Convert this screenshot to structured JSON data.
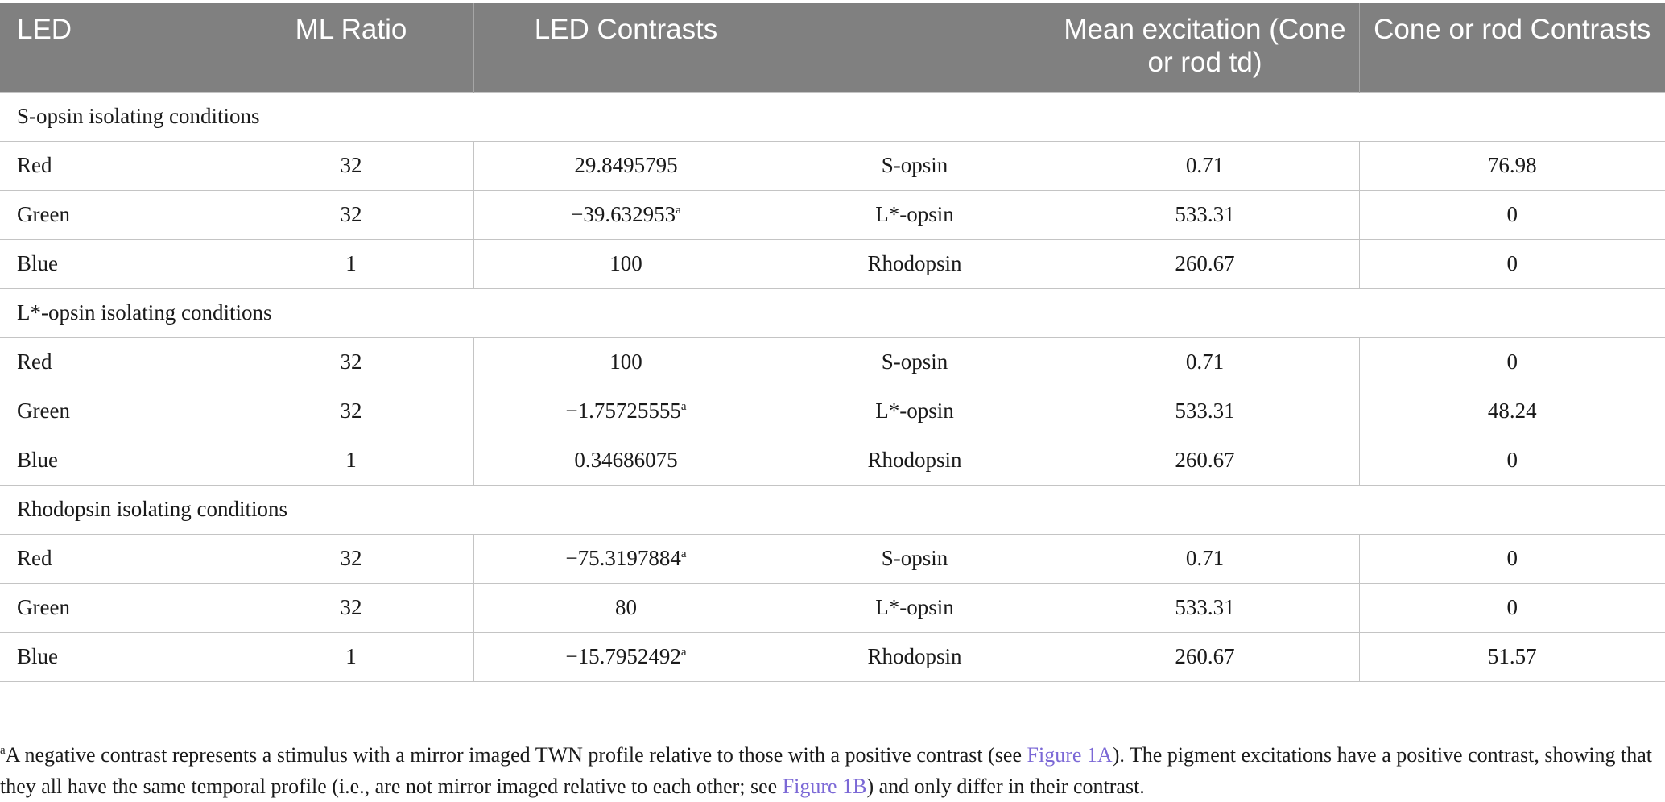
{
  "table": {
    "headers": [
      "LED",
      "ML Ratio",
      "LED Contrasts",
      "",
      "Mean excitation (Cone or rod td)",
      "Cone or rod Contrasts"
    ],
    "sections": [
      {
        "title": "S-opsin isolating conditions",
        "rows": [
          {
            "led": "Red",
            "ml_ratio": "32",
            "led_contrast": "29.8495795",
            "note": "",
            "pigment": "S-opsin",
            "mean_excitation": "0.71",
            "contrast": "76.98"
          },
          {
            "led": "Green",
            "ml_ratio": "32",
            "led_contrast": "−39.632953",
            "note": "a",
            "pigment": "L*-opsin",
            "mean_excitation": "533.31",
            "contrast": "0"
          },
          {
            "led": "Blue",
            "ml_ratio": "1",
            "led_contrast": "100",
            "note": "",
            "pigment": "Rhodopsin",
            "mean_excitation": "260.67",
            "contrast": "0"
          }
        ]
      },
      {
        "title": "L*-opsin isolating conditions",
        "rows": [
          {
            "led": "Red",
            "ml_ratio": "32",
            "led_contrast": "100",
            "note": "",
            "pigment": "S-opsin",
            "mean_excitation": "0.71",
            "contrast": "0"
          },
          {
            "led": "Green",
            "ml_ratio": "32",
            "led_contrast": "−1.75725555",
            "note": "a",
            "pigment": "L*-opsin",
            "mean_excitation": "533.31",
            "contrast": "48.24"
          },
          {
            "led": "Blue",
            "ml_ratio": "1",
            "led_contrast": "0.34686075",
            "note": "",
            "pigment": "Rhodopsin",
            "mean_excitation": "260.67",
            "contrast": "0"
          }
        ]
      },
      {
        "title": "Rhodopsin isolating conditions",
        "rows": [
          {
            "led": "Red",
            "ml_ratio": "32",
            "led_contrast": "−75.3197884",
            "note": "a",
            "pigment": "S-opsin",
            "mean_excitation": "0.71",
            "contrast": "0"
          },
          {
            "led": "Green",
            "ml_ratio": "32",
            "led_contrast": "80",
            "note": "",
            "pigment": "L*-opsin",
            "mean_excitation": "533.31",
            "contrast": "0"
          },
          {
            "led": "Blue",
            "ml_ratio": "1",
            "led_contrast": "−15.7952492",
            "note": "a",
            "pigment": "Rhodopsin",
            "mean_excitation": "260.67",
            "contrast": "51.57"
          }
        ]
      }
    ]
  },
  "footnote": {
    "marker": "a",
    "text_1": "A negative contrast represents a stimulus with a mirror imaged TWN profile relative to those with a positive contrast (see ",
    "link_1": "Figure 1A",
    "text_2": "). The pigment excitations have a positive contrast, showing that they all have the same temporal profile (i.e., are not mirror imaged relative to each other; see ",
    "link_2": "Figure 1B",
    "text_3": ") and only differ in their contrast."
  },
  "colors": {
    "header_bg": "#808080",
    "header_text": "#ffffff",
    "grid": "#c4c4c4",
    "link": "#7b68d6"
  }
}
